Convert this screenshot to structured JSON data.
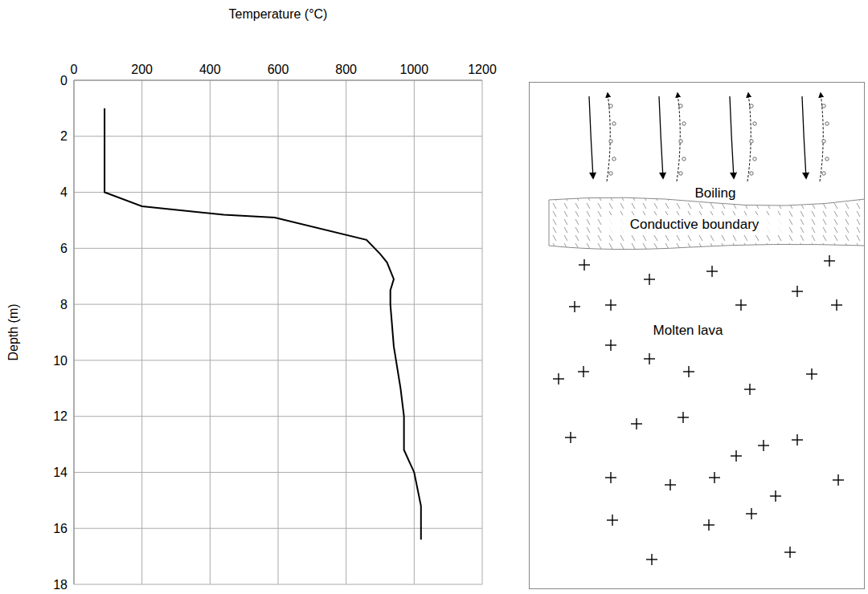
{
  "chart_data": {
    "type": "line",
    "x_label": "Temperature (°C)",
    "y_label": "Depth (m)",
    "x": [
      90,
      90,
      200,
      440,
      590,
      860,
      900,
      920,
      940,
      930,
      930,
      940,
      960,
      970,
      970,
      1000,
      1020,
      1020
    ],
    "values": [
      1,
      4,
      4.5,
      4.8,
      4.9,
      5.7,
      6.2,
      6.5,
      7.1,
      7.5,
      8,
      9.5,
      11,
      12,
      13.2,
      14,
      15.2,
      16.4
    ],
    "color": "#000000",
    "xlim": [
      0,
      1200
    ],
    "xticks": [
      0,
      200,
      400,
      600,
      800,
      1000,
      1200
    ],
    "ylim": [
      0,
      18
    ],
    "yticks": [
      0,
      2,
      4,
      6,
      8,
      10,
      12,
      14,
      16,
      18
    ],
    "grid": true
  },
  "diagram": {
    "labels": [
      "Boiling",
      "Conductive boundary",
      "Molten lava"
    ]
  }
}
